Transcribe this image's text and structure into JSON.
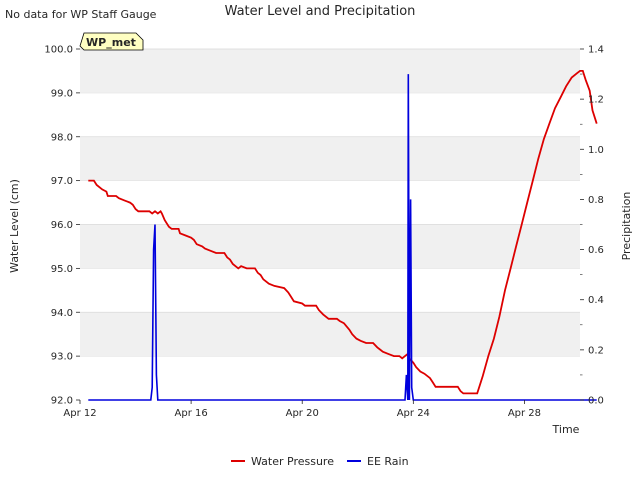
{
  "chart_data": {
    "type": "line",
    "title": "Water Level and Precipitation",
    "top_left_note": "No data for WP Staff Gauge",
    "badge": "WP_met",
    "xlabel": "Time",
    "ylabel_left": "Water Level (cm)",
    "ylabel_right": "Precipitation",
    "x_tick_labels": [
      "Apr 12",
      "Apr 16",
      "Apr 20",
      "Apr 24",
      "Apr 28"
    ],
    "x_ticks": [
      0,
      4,
      8,
      12,
      16
    ],
    "xlim": [
      0,
      18
    ],
    "ylim_left": [
      92.0,
      100.0
    ],
    "y_left_ticks": [
      "92.0",
      "93.0",
      "94.0",
      "95.0",
      "96.0",
      "97.0",
      "98.0",
      "99.0",
      "100.0"
    ],
    "ylim_right": [
      0.0,
      1.4
    ],
    "y_right_ticks": [
      "0.0",
      "0.2",
      "0.4",
      "0.6",
      "0.8",
      "1.0",
      "1.2",
      "1.4"
    ],
    "grid": "horizontal bands",
    "legend_placement": "bottom-center",
    "series": [
      {
        "name": "Water Pressure",
        "axis": "left",
        "color": "#dd0000",
        "points": [
          [
            0.3,
            97.0
          ],
          [
            0.5,
            97.0
          ],
          [
            0.6,
            96.9
          ],
          [
            0.8,
            96.8
          ],
          [
            0.95,
            96.75
          ],
          [
            1.0,
            96.65
          ],
          [
            1.3,
            96.65
          ],
          [
            1.4,
            96.6
          ],
          [
            1.6,
            96.55
          ],
          [
            1.8,
            96.5
          ],
          [
            1.9,
            96.45
          ],
          [
            2.0,
            96.35
          ],
          [
            2.1,
            96.3
          ],
          [
            2.5,
            96.3
          ],
          [
            2.6,
            96.25
          ],
          [
            2.7,
            96.3
          ],
          [
            2.8,
            96.25
          ],
          [
            2.9,
            96.3
          ],
          [
            2.95,
            96.25
          ],
          [
            3.05,
            96.1
          ],
          [
            3.2,
            95.95
          ],
          [
            3.3,
            95.9
          ],
          [
            3.55,
            95.9
          ],
          [
            3.6,
            95.8
          ],
          [
            3.8,
            95.75
          ],
          [
            4.0,
            95.7
          ],
          [
            4.1,
            95.65
          ],
          [
            4.2,
            95.55
          ],
          [
            4.4,
            95.5
          ],
          [
            4.5,
            95.45
          ],
          [
            4.7,
            95.4
          ],
          [
            4.9,
            95.35
          ],
          [
            5.2,
            95.35
          ],
          [
            5.3,
            95.25
          ],
          [
            5.4,
            95.2
          ],
          [
            5.5,
            95.1
          ],
          [
            5.7,
            95.0
          ],
          [
            5.8,
            95.05
          ],
          [
            6.0,
            95.0
          ],
          [
            6.3,
            95.0
          ],
          [
            6.4,
            94.9
          ],
          [
            6.5,
            94.85
          ],
          [
            6.6,
            94.75
          ],
          [
            6.8,
            94.65
          ],
          [
            7.0,
            94.6
          ],
          [
            7.35,
            94.55
          ],
          [
            7.5,
            94.45
          ],
          [
            7.6,
            94.35
          ],
          [
            7.7,
            94.25
          ],
          [
            8.0,
            94.2
          ],
          [
            8.1,
            94.15
          ],
          [
            8.5,
            94.15
          ],
          [
            8.6,
            94.05
          ],
          [
            8.75,
            93.95
          ],
          [
            8.95,
            93.85
          ],
          [
            9.25,
            93.85
          ],
          [
            9.35,
            93.8
          ],
          [
            9.5,
            93.75
          ],
          [
            9.7,
            93.6
          ],
          [
            9.8,
            93.5
          ],
          [
            9.95,
            93.4
          ],
          [
            10.1,
            93.35
          ],
          [
            10.3,
            93.3
          ],
          [
            10.55,
            93.3
          ],
          [
            10.7,
            93.2
          ],
          [
            10.9,
            93.1
          ],
          [
            11.1,
            93.05
          ],
          [
            11.3,
            93.0
          ],
          [
            11.5,
            93.0
          ],
          [
            11.6,
            92.95
          ],
          [
            11.7,
            93.0
          ],
          [
            11.8,
            93.05
          ],
          [
            11.85,
            92.95
          ],
          [
            12.0,
            92.85
          ],
          [
            12.1,
            92.75
          ],
          [
            12.25,
            92.65
          ],
          [
            12.4,
            92.6
          ],
          [
            12.6,
            92.5
          ],
          [
            12.7,
            92.4
          ],
          [
            12.8,
            92.3
          ],
          [
            12.9,
            92.3
          ],
          [
            13.6,
            92.3
          ],
          [
            13.7,
            92.2
          ],
          [
            13.8,
            92.15
          ],
          [
            14.3,
            92.15
          ],
          [
            14.5,
            92.55
          ],
          [
            14.7,
            93.0
          ],
          [
            14.9,
            93.4
          ],
          [
            15.1,
            93.9
          ],
          [
            15.3,
            94.5
          ],
          [
            15.5,
            95.0
          ],
          [
            15.7,
            95.5
          ],
          [
            15.9,
            96.0
          ],
          [
            16.1,
            96.5
          ],
          [
            16.3,
            97.0
          ],
          [
            16.5,
            97.5
          ],
          [
            16.7,
            97.95
          ],
          [
            16.9,
            98.3
          ],
          [
            17.1,
            98.65
          ],
          [
            17.3,
            98.9
          ],
          [
            17.5,
            99.15
          ],
          [
            17.7,
            99.35
          ],
          [
            17.9,
            99.45
          ],
          [
            18.0,
            99.5
          ],
          [
            18.1,
            99.5
          ],
          [
            18.2,
            99.3
          ],
          [
            18.35,
            99.05
          ],
          [
            18.45,
            98.6
          ],
          [
            18.55,
            98.4
          ],
          [
            18.6,
            98.3
          ]
        ]
      },
      {
        "name": "EE Rain",
        "axis": "right",
        "color": "#0000dd",
        "points": [
          [
            0.3,
            0.0
          ],
          [
            2.55,
            0.0
          ],
          [
            2.6,
            0.05
          ],
          [
            2.65,
            0.6
          ],
          [
            2.7,
            0.7
          ],
          [
            2.75,
            0.1
          ],
          [
            2.8,
            0.0
          ],
          [
            11.7,
            0.0
          ],
          [
            11.75,
            0.1
          ],
          [
            11.8,
            0.0
          ],
          [
            11.82,
            1.3
          ],
          [
            11.86,
            0.0
          ],
          [
            11.9,
            0.8
          ],
          [
            11.94,
            0.05
          ],
          [
            12.0,
            0.0
          ],
          [
            18.6,
            0.0
          ]
        ]
      }
    ]
  }
}
